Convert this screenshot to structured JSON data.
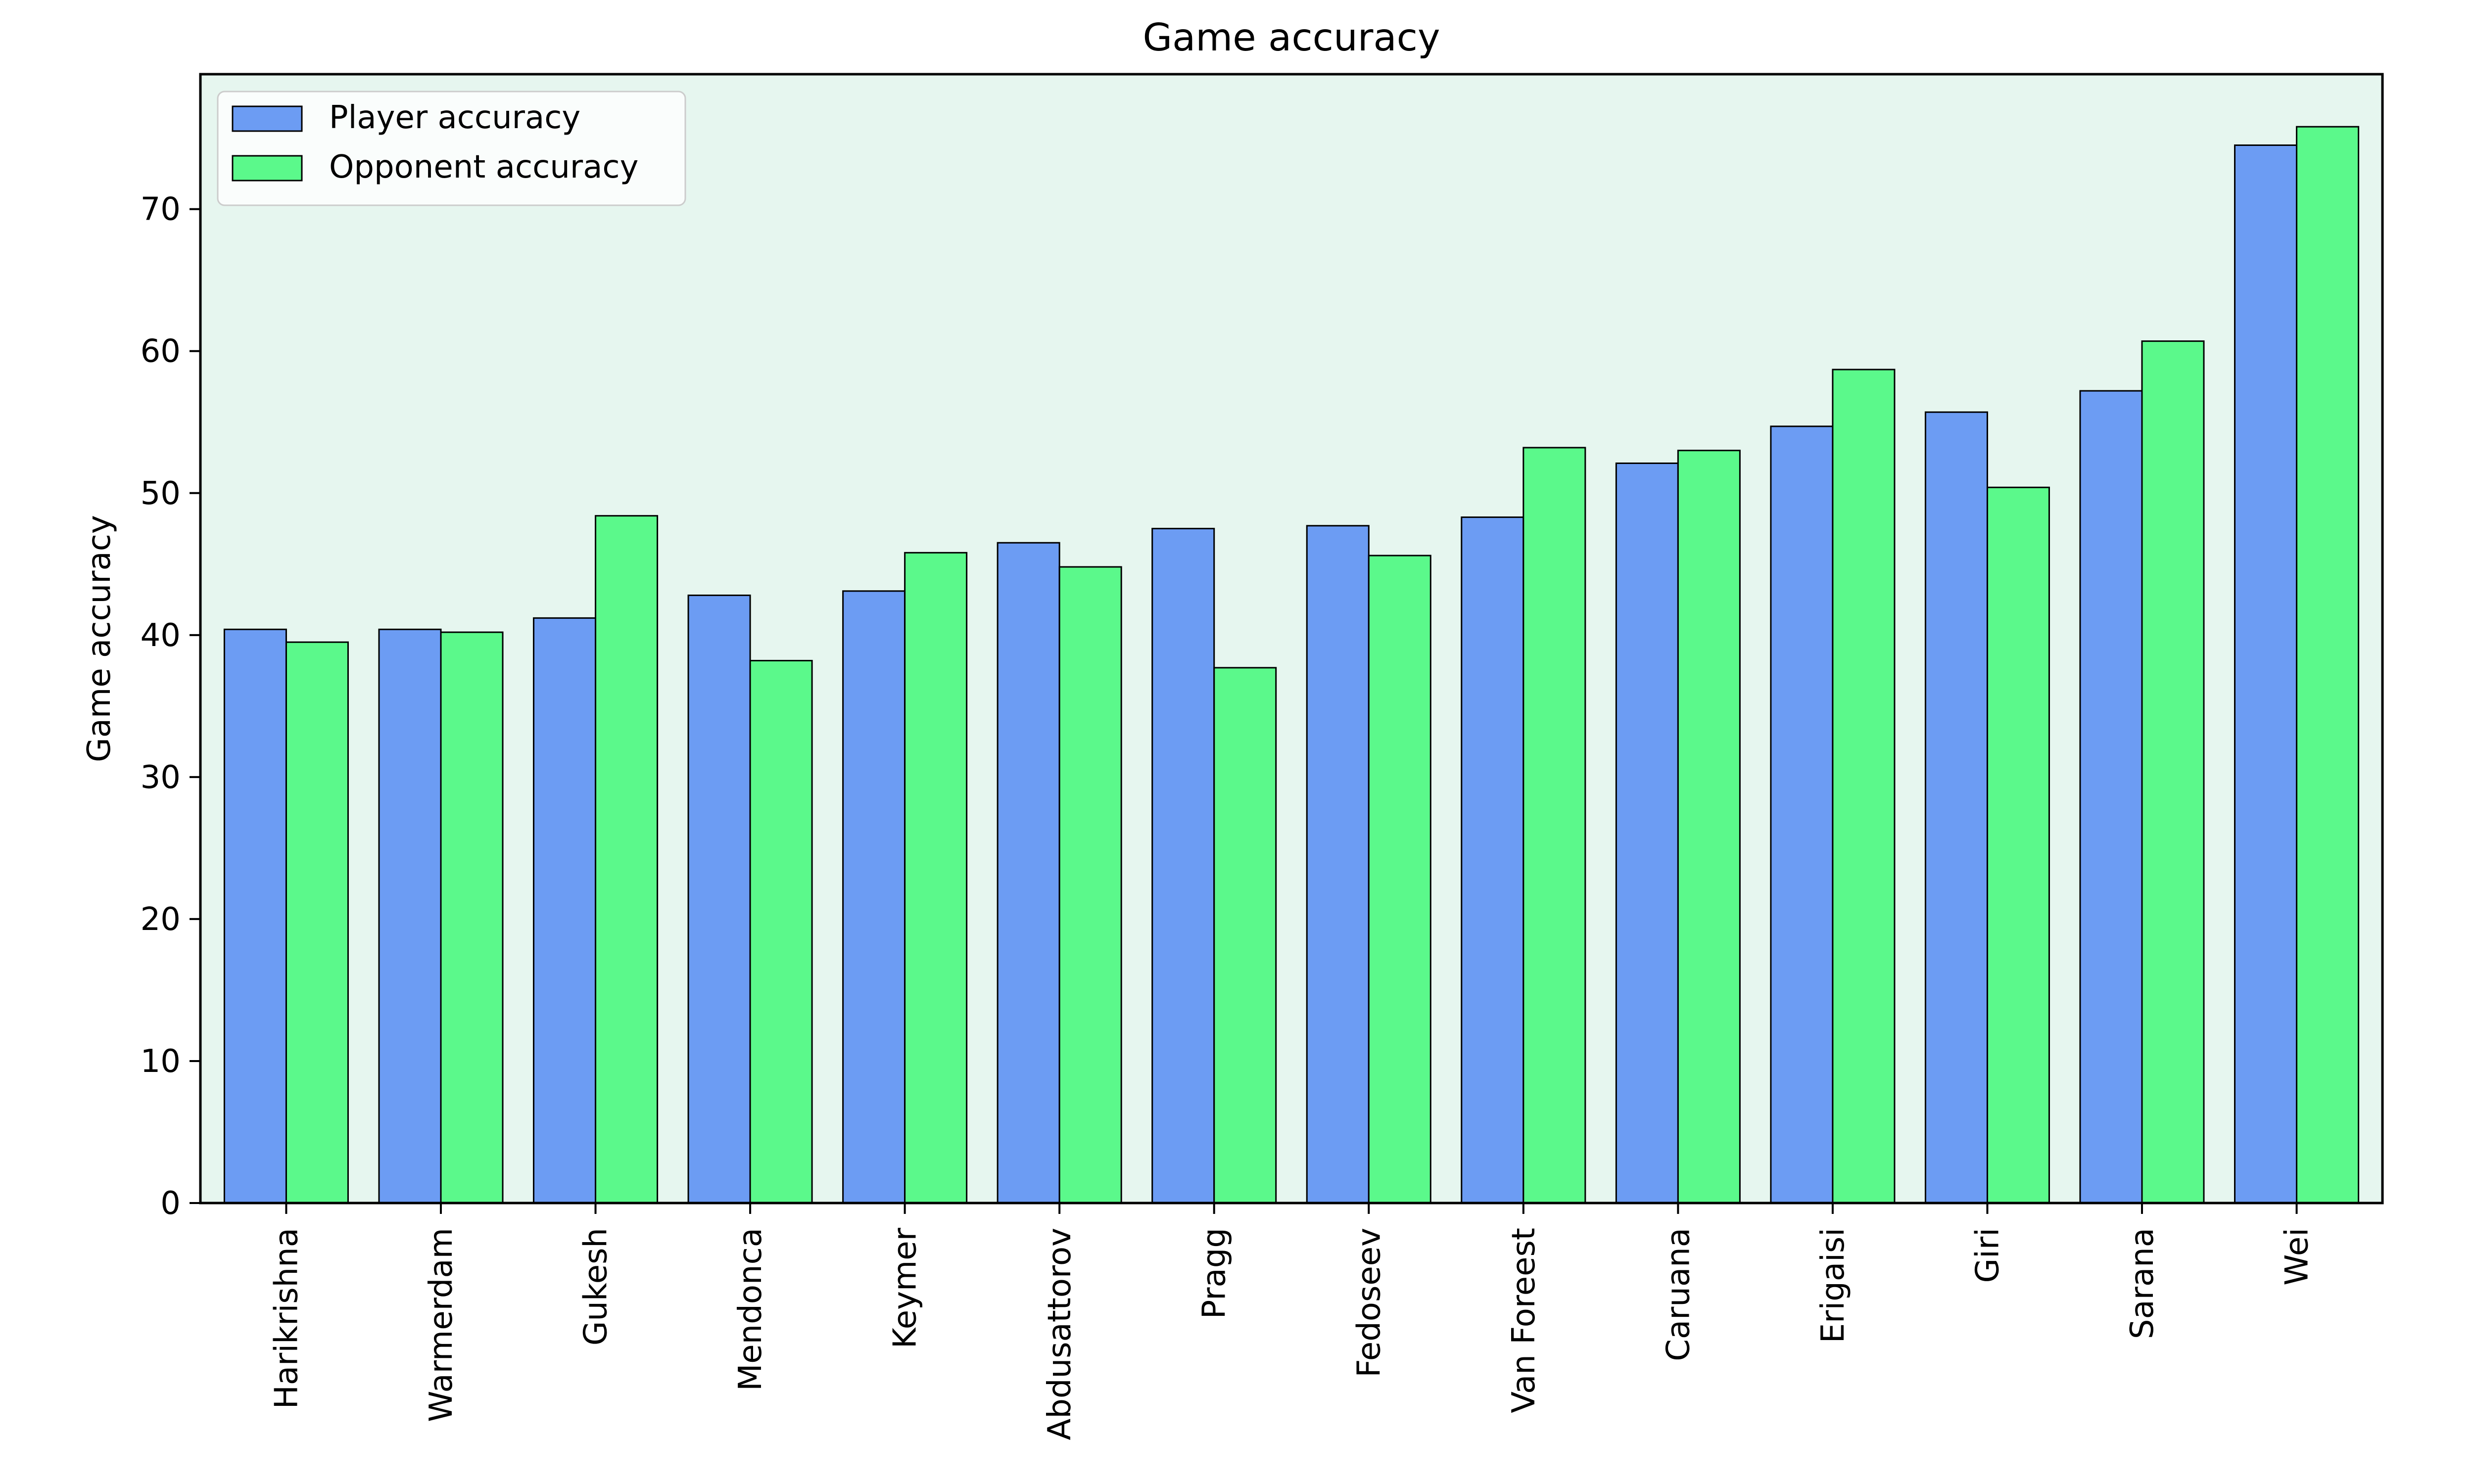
{
  "chart_data": {
    "type": "bar",
    "title": "Game accuracy",
    "xlabel": "",
    "ylabel": "Game accuracy",
    "ylim": [
      0,
      79.5
    ],
    "yticks": [
      0,
      10,
      20,
      30,
      40,
      50,
      60,
      70
    ],
    "grid": false,
    "legend_position": "upper-left",
    "background_color": "#e6f6ef",
    "categories": [
      "Harikrishna",
      "Warmerdam",
      "Gukesh",
      "Mendonca",
      "Keymer",
      "Abdusattorov",
      "Pragg",
      "Fedoseev",
      "Van Foreest",
      "Caruana",
      "Erigaisi",
      "Giri",
      "Sarana",
      "Wei"
    ],
    "series": [
      {
        "name": "Player accuracy",
        "color": "#6c9cf3",
        "values": [
          40.4,
          40.4,
          41.2,
          42.8,
          43.1,
          46.5,
          47.5,
          47.7,
          48.3,
          52.1,
          54.7,
          55.7,
          57.2,
          74.5
        ]
      },
      {
        "name": "Opponent accuracy",
        "color": "#5bf98b",
        "values": [
          39.5,
          40.2,
          48.4,
          38.2,
          45.8,
          44.8,
          37.7,
          45.6,
          53.2,
          53.0,
          58.7,
          50.4,
          60.7,
          75.8
        ]
      }
    ]
  }
}
